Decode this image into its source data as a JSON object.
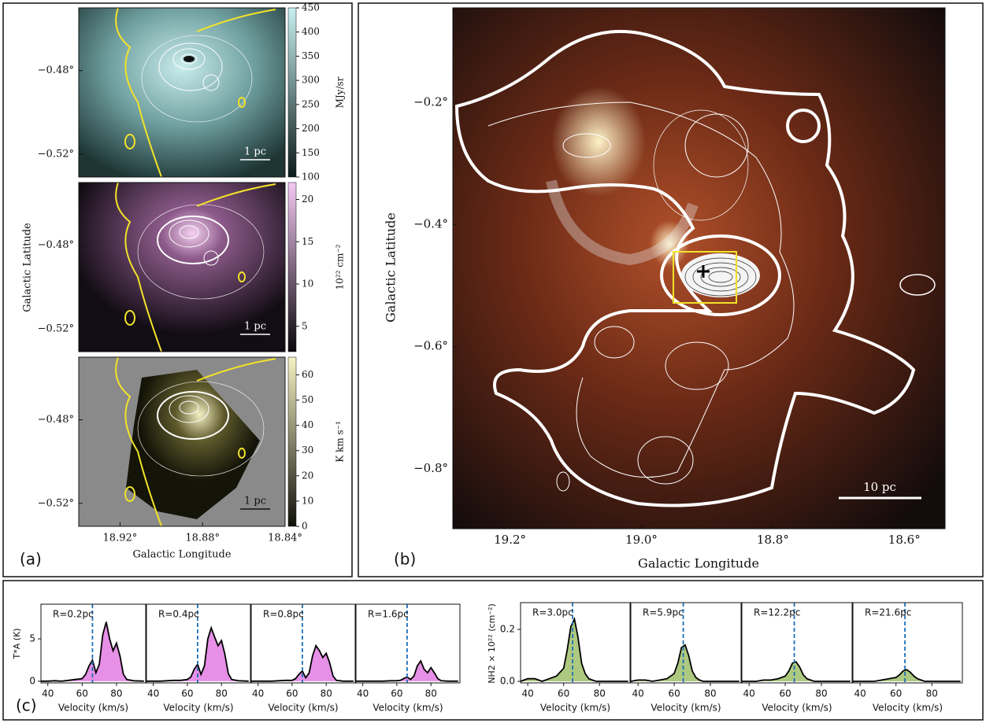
{
  "chart_data": [
    {
      "type": "image",
      "panel_label": "(a)",
      "x_label": "Galactic Longitude",
      "y_label": "Galactic Latitude",
      "xlim": [
        18.94,
        18.84
      ],
      "xticks": [
        {
          "value": 18.92,
          "label": "18.92°"
        },
        {
          "value": 18.88,
          "label": "18.88°"
        },
        {
          "value": 18.84,
          "label": "18.84°"
        }
      ],
      "subplots": [
        {
          "ylim": [
            -0.531,
            -0.45
          ],
          "yticks": [
            {
              "value": -0.48,
              "label": "−0.48°"
            },
            {
              "value": -0.52,
              "label": "−0.52°"
            }
          ],
          "scale_bar": "1 pc",
          "colorbar": {
            "label": "MJy/sr",
            "lim": [
              100,
              450
            ],
            "ticks": [
              100,
              150,
              200,
              250,
              300,
              350,
              400,
              450
            ]
          }
        },
        {
          "ylim": [
            -0.531,
            -0.45
          ],
          "yticks": [
            {
              "value": -0.48,
              "label": "−0.48°"
            },
            {
              "value": -0.52,
              "label": "−0.52°"
            }
          ],
          "scale_bar": "1 pc",
          "colorbar": {
            "label": "10²² cm⁻²",
            "lim": [
              2,
              22
            ],
            "ticks": [
              5,
              10,
              15,
              20
            ]
          }
        },
        {
          "ylim": [
            -0.531,
            -0.45
          ],
          "yticks": [
            {
              "value": -0.48,
              "label": "−0.48°"
            },
            {
              "value": -0.52,
              "label": "−0.52°"
            }
          ],
          "scale_bar": "1 pc",
          "colorbar": {
            "label": "K km s⁻¹",
            "lim": [
              0,
              67
            ],
            "ticks": [
              0,
              10,
              20,
              30,
              40,
              50,
              60
            ]
          }
        }
      ]
    },
    {
      "type": "image",
      "panel_label": "(b)",
      "x_label": "Galactic Longitude",
      "y_label": "Galactic Latitude",
      "xlim": [
        19.287,
        18.538
      ],
      "xticks": [
        {
          "value": 19.2,
          "label": "19.2°"
        },
        {
          "value": 19.0,
          "label": "19.0°"
        },
        {
          "value": 18.8,
          "label": "18.8°"
        },
        {
          "value": 18.6,
          "label": "18.6°"
        }
      ],
      "subplots": [
        {
          "ylim": [
            -0.898,
            -0.045
          ],
          "yticks": [
            {
              "value": -0.2,
              "label": "−0.2°"
            },
            {
              "value": -0.4,
              "label": "−0.4°"
            },
            {
              "value": -0.6,
              "label": "−0.6°"
            },
            {
              "value": -0.8,
              "label": "−0.8°"
            }
          ],
          "scale_bar": "10 pc"
        }
      ]
    },
    {
      "type": "line",
      "panel_label": "(c)",
      "groups": [
        {
          "y_label": "T*A (K)",
          "x_label": "Velocity (km/s)",
          "xlim": [
            36,
            97
          ],
          "xticks": [
            40,
            60,
            80
          ],
          "ylim": [
            -0.2,
            9.1
          ],
          "yticks": [
            0,
            5
          ],
          "reference_x": 66,
          "line_color": "#000000",
          "fill_color": "#e37ce3",
          "reference_color": "#1f6fb4",
          "x": [
            36,
            40,
            44,
            48,
            52,
            56,
            60,
            62,
            64,
            66,
            68,
            70,
            72,
            74,
            76,
            78,
            80,
            82,
            84,
            86,
            90,
            96
          ],
          "subplots": [
            {
              "title": "R=0.2pc",
              "values": [
                0,
                0,
                0.05,
                0,
                0.1,
                0.2,
                0.3,
                0.8,
                1.8,
                2.5,
                1.0,
                2.0,
                5.5,
                7.0,
                5.0,
                3.6,
                4.5,
                3.0,
                0.8,
                0.2,
                0.05,
                0
              ]
            },
            {
              "title": "R=0.4pc",
              "values": [
                0,
                0,
                0,
                0.05,
                0.1,
                0.1,
                0.2,
                0.5,
                1.4,
                2.0,
                0.8,
                1.8,
                5.0,
                6.3,
                5.2,
                4.2,
                4.8,
                3.2,
                0.9,
                0.2,
                0.05,
                0
              ]
            },
            {
              "title": "R=0.8pc",
              "values": [
                0,
                0,
                0,
                0,
                0.05,
                0.1,
                0.1,
                0.3,
                0.8,
                1.2,
                0.4,
                1.0,
                3.0,
                4.2,
                3.6,
                2.8,
                3.3,
                2.2,
                0.6,
                0.1,
                0,
                0
              ]
            },
            {
              "title": "R=1.6pc",
              "values": [
                0,
                0,
                0,
                0,
                0,
                0.05,
                0.05,
                0.1,
                0.3,
                0.5,
                0.2,
                0.6,
                1.8,
                2.4,
                1.4,
                1.0,
                1.6,
                1.0,
                0.3,
                0.05,
                0,
                0
              ]
            }
          ]
        },
        {
          "y_label": "NH2 × 10²² (cm⁻²)",
          "x_label": "Velocity (km/s)",
          "xlim": [
            36,
            97
          ],
          "xticks": [
            40,
            60,
            80
          ],
          "ylim": [
            -0.006,
            0.303
          ],
          "yticks": [
            {
              "value": 0,
              "label": "0.0"
            },
            0.2
          ],
          "reference_x": 65,
          "line_color": "#000000",
          "fill_color": "#9fbf6a",
          "reference_color": "#1f6fb4",
          "x": [
            36,
            40,
            44,
            48,
            52,
            56,
            60,
            62,
            64,
            66,
            68,
            70,
            72,
            74,
            76,
            78,
            80,
            82,
            84,
            86,
            90,
            96
          ],
          "subplots": [
            {
              "title": "R=3.0pc",
              "values": [
                0,
                0.01,
                0.01,
                0,
                0.01,
                0.02,
                0.05,
                0.12,
                0.21,
                0.24,
                0.17,
                0.07,
                0.03,
                0.01,
                0.005,
                0,
                0,
                0,
                0,
                0,
                0,
                0
              ]
            },
            {
              "title": "R=5.9pc",
              "values": [
                0,
                0.005,
                0.005,
                0,
                0.005,
                0.01,
                0.03,
                0.07,
                0.13,
                0.14,
                0.1,
                0.04,
                0.015,
                0.005,
                0,
                0,
                0,
                0,
                0,
                0,
                0,
                0
              ]
            },
            {
              "title": "R=12.2pc",
              "values": [
                0,
                0,
                0,
                0.005,
                0.005,
                0.01,
                0.02,
                0.04,
                0.07,
                0.075,
                0.055,
                0.025,
                0.01,
                0.005,
                0,
                0,
                0,
                0,
                0,
                0,
                0,
                0
              ]
            },
            {
              "title": "R=21.6pc",
              "values": [
                0,
                0,
                0,
                0,
                0.005,
                0.01,
                0.015,
                0.025,
                0.04,
                0.045,
                0.035,
                0.02,
                0.01,
                0.005,
                0,
                0,
                0,
                0,
                0,
                0,
                0,
                0
              ]
            }
          ]
        }
      ]
    }
  ]
}
